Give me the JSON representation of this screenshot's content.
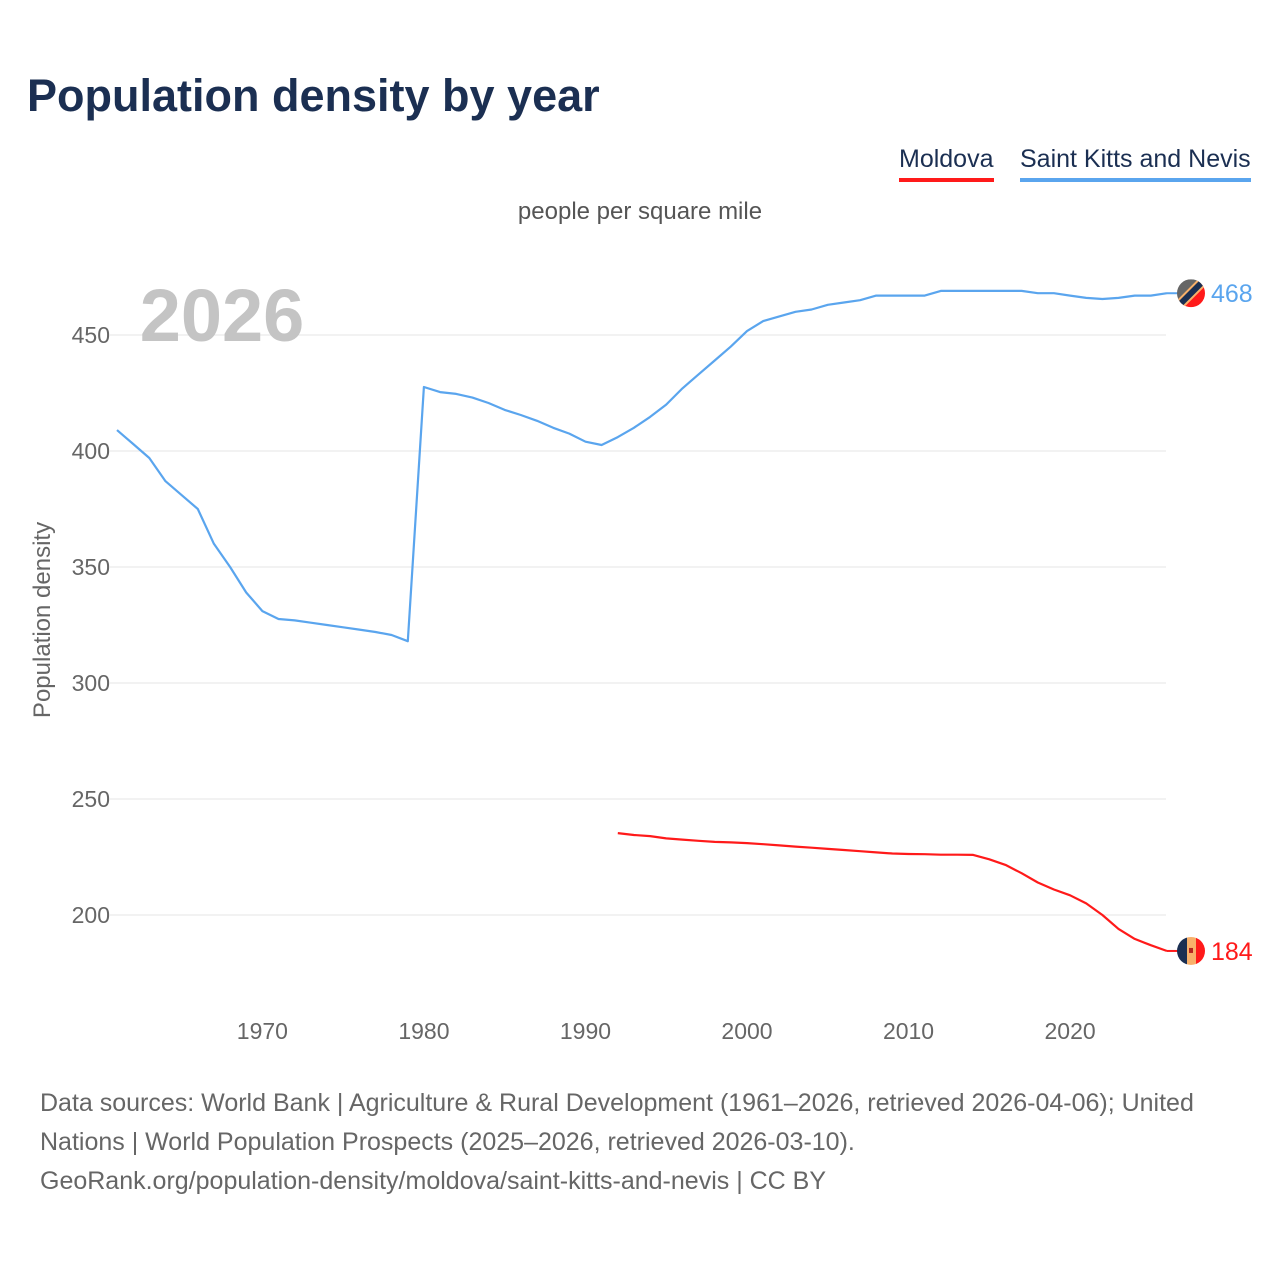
{
  "title": "Population density by year",
  "legend": [
    {
      "label": "Moldova",
      "color": "#ff1a1a"
    },
    {
      "label": "Saint Kitts and Nevis",
      "color": "#5aa5ee"
    }
  ],
  "chart_data": {
    "type": "line",
    "title": "Population density by year",
    "subtitle": "people per square mile",
    "ylabel": "Population density",
    "xlabel": "",
    "year_watermark": "2026",
    "xlim": [
      1961,
      2026
    ],
    "ylim": [
      165,
      480
    ],
    "x_ticks": [
      1970,
      1980,
      1990,
      2000,
      2010,
      2020
    ],
    "y_ticks": [
      200,
      250,
      300,
      350,
      400,
      450
    ],
    "grid": true,
    "legend_position": "top-right",
    "series": [
      {
        "name": "Saint Kitts and Nevis",
        "color": "#5aa5ee",
        "end_label": "468",
        "x": [
          1961,
          1962,
          1963,
          1964,
          1965,
          1966,
          1967,
          1968,
          1969,
          1970,
          1971,
          1972,
          1973,
          1974,
          1975,
          1976,
          1977,
          1978,
          1979,
          1980,
          1981,
          1982,
          1983,
          1984,
          1985,
          1986,
          1987,
          1988,
          1989,
          1990,
          1991,
          1992,
          1993,
          1994,
          1995,
          1996,
          1997,
          1998,
          1999,
          2000,
          2001,
          2002,
          2003,
          2004,
          2005,
          2006,
          2007,
          2008,
          2009,
          2010,
          2011,
          2012,
          2013,
          2014,
          2015,
          2016,
          2017,
          2018,
          2019,
          2020,
          2021,
          2022,
          2023,
          2024,
          2025,
          2026
        ],
        "y": [
          409,
          403,
          397,
          387,
          381,
          375,
          360,
          350,
          339,
          331,
          327.6,
          327,
          326,
          325,
          324,
          323,
          322,
          320.7,
          318,
          427.6,
          425.4,
          424.6,
          423,
          420.7,
          417.7,
          415.5,
          413,
          410,
          407.5,
          404,
          402.6,
          406,
          410,
          414.7,
          420,
          427,
          433,
          439,
          445,
          451.7,
          456,
          458,
          460,
          461,
          463,
          464,
          465,
          467,
          467,
          467,
          467,
          469,
          469,
          469,
          469,
          469,
          469,
          468,
          468,
          467,
          466,
          465.5,
          466,
          467,
          467,
          468
        ]
      },
      {
        "name": "Moldova",
        "color": "#ff1a1a",
        "end_label": "184",
        "x": [
          1992,
          1993,
          1994,
          1995,
          1996,
          1997,
          1998,
          1999,
          2000,
          2001,
          2002,
          2003,
          2004,
          2005,
          2006,
          2007,
          2008,
          2009,
          2010,
          2011,
          2012,
          2013,
          2014,
          2015,
          2016,
          2017,
          2018,
          2019,
          2020,
          2021,
          2022,
          2023,
          2024,
          2025,
          2026
        ],
        "y": [
          235.3,
          234.5,
          234,
          233,
          232.5,
          232,
          231.5,
          231.3,
          231,
          230.5,
          230,
          229.5,
          229,
          228.5,
          228,
          227.5,
          227,
          226.5,
          226.3,
          226.2,
          226,
          226,
          225.9,
          224,
          221.6,
          218,
          214,
          211,
          208.5,
          205,
          200,
          194,
          189.7,
          187,
          184.5
        ]
      }
    ]
  },
  "footer": {
    "line1": "Data sources: World Bank | Agriculture & Rural Development (1961–2026, retrieved 2026-04-06); United Nations | World Population Prospects (2025–2026, retrieved 2026-03-10).",
    "line2": "GeoRank.org/population-density/moldova/saint-kitts-and-nevis | CC BY"
  }
}
